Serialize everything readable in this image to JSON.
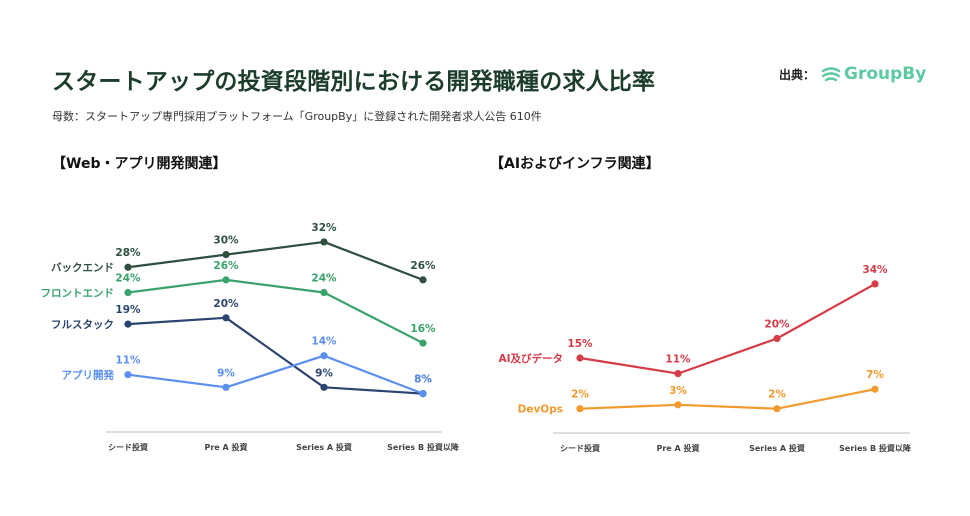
{
  "header": {
    "title": "スタートアップの投資段階別における開発職種の求人比率",
    "source_label": "出典：",
    "source_brand": "GroupBy",
    "subtitle": "母数：スタートアップ専門採用プラットフォーム「GroupBy」に登録された開発者求人公告 610件",
    "brand_color": "#5cc9a0"
  },
  "chart_data": [
    {
      "type": "line",
      "title": "【Web・アプリ開発関連】",
      "categories": [
        "シード投資",
        "Pre A 投資",
        "Series A 投資",
        "Series B 投資以降"
      ],
      "ylim": [
        0,
        36
      ],
      "grid": false,
      "legend": "inline-left",
      "series": [
        {
          "name": "バックエンド",
          "values": [
            28,
            30,
            32,
            26
          ],
          "color": "#2f4f3f"
        },
        {
          "name": "フロントエンド",
          "values": [
            24,
            26,
            24,
            16
          ],
          "color": "#3aa26b"
        },
        {
          "name": "フルスタック",
          "values": [
            19,
            20,
            9,
            8
          ],
          "color": "#2b4470"
        },
        {
          "name": "アプリ開発",
          "values": [
            11,
            9,
            14,
            8
          ],
          "color": "#5b8ff0"
        }
      ]
    },
    {
      "type": "line",
      "title": "【AIおよびインフラ関連】",
      "categories": [
        "シード投資",
        "Pre A 投資",
        "Series A 投資",
        "Series B 投資以降"
      ],
      "ylim": [
        0,
        36
      ],
      "grid": false,
      "legend": "inline-left",
      "series": [
        {
          "name": "AI及びデータ",
          "values": [
            15,
            11,
            20,
            34
          ],
          "color": "#d63b48"
        },
        {
          "name": "DevOps",
          "values": [
            2,
            3,
            2,
            7
          ],
          "color": "#f39a2d"
        }
      ]
    }
  ]
}
